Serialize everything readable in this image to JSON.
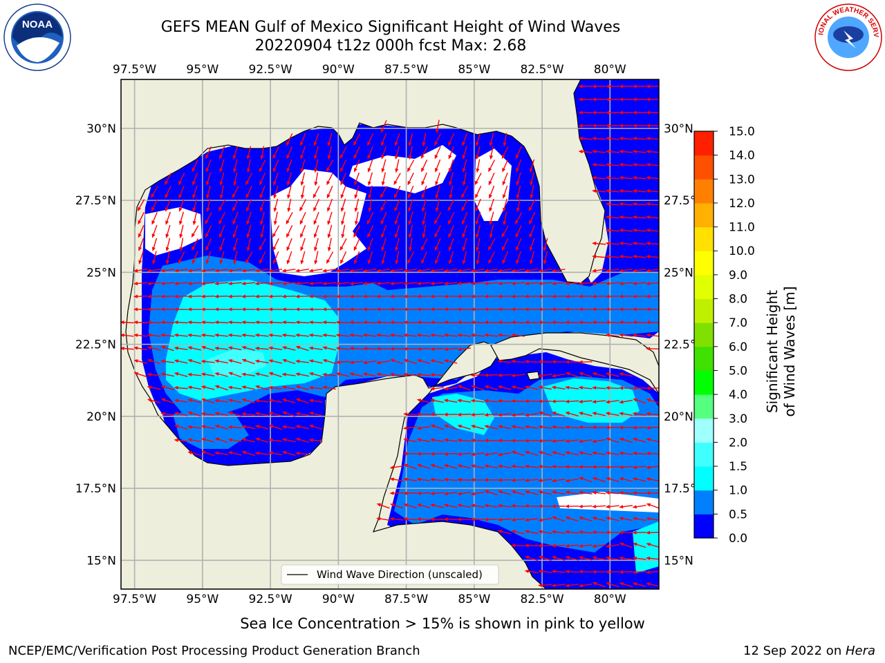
{
  "title": {
    "line1": "GEFS MEAN Gulf of Mexico Significant Height of Wind Waves",
    "line2": "20220904 t12z 000h fcst   Max: 2.68"
  },
  "axes": {
    "lon_labels": [
      "97.5°W",
      "95°W",
      "92.5°W",
      "90°W",
      "87.5°W",
      "85°W",
      "82.5°W",
      "80°W"
    ],
    "lat_labels": [
      "30°N",
      "27.5°N",
      "25°N",
      "22.5°N",
      "20°N",
      "17.5°N",
      "15°N"
    ],
    "lon_values": [
      -97.5,
      -95,
      -92.5,
      -90,
      -87.5,
      -85,
      -82.5,
      -80
    ],
    "lat_values": [
      30,
      27.5,
      25,
      22.5,
      20,
      17.5,
      15
    ],
    "lon_range": [
      -98,
      -78.2
    ],
    "lat_range": [
      14.0,
      31.7
    ]
  },
  "legend": {
    "label": "Wind Wave Direction (unscaled)"
  },
  "colorbar": {
    "label": "Significant Height of Wind Waves [m]",
    "ticks": [
      "0.0",
      "0.5",
      "1.0",
      "1.5",
      "2.0",
      "3.0",
      "4.0",
      "5.0",
      "6.0",
      "7.0",
      "8.0",
      "9.0",
      "10.0",
      "11.0",
      "12.0",
      "13.0",
      "14.0",
      "15.0"
    ],
    "colors": [
      "#0000ff",
      "#0080ff",
      "#00ffff",
      "#40ffff",
      "#a0ffff",
      "#55ff80",
      "#00ff00",
      "#40e000",
      "#80e000",
      "#c0f000",
      "#e0ff00",
      "#ffff00",
      "#ffe000",
      "#ffb000",
      "#ff8000",
      "#ff5000",
      "#ff2000"
    ]
  },
  "colors": {
    "land": "#eeeedc",
    "grid": "#b0b0b0",
    "arrow": "#ff0000",
    "coast": "#000000"
  },
  "note": "Sea Ice Concentration > 15% is shown in pink to yellow",
  "footer": {
    "left": "NCEP/EMC/Verification Post Processing Product Generation Branch",
    "date": "12 Sep 2022 on ",
    "machine": "Hera"
  },
  "logos": {
    "noaa": "NOAA",
    "nws": "NATIONAL WEATHER SERVICE"
  }
}
